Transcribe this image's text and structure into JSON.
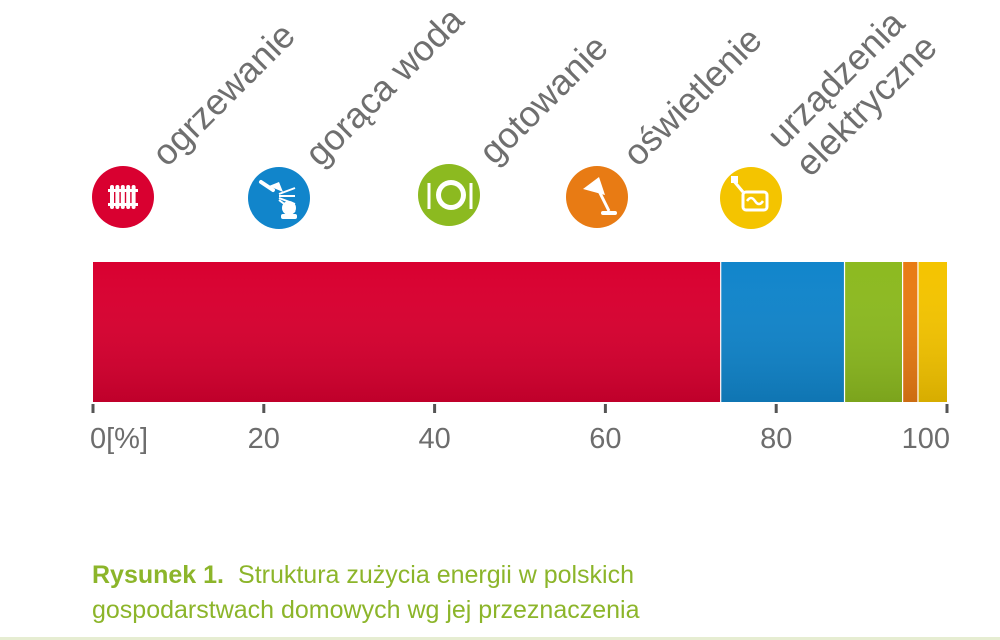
{
  "chart_data": {
    "type": "bar",
    "orientation": "horizontal-stacked",
    "categories": [
      "ogrzewanie",
      "gorąca woda",
      "gotowanie",
      "oświetlenie",
      "urządzenia elektryczne"
    ],
    "category_lines": [
      [
        "ogrzewanie"
      ],
      [
        "gorąca woda"
      ],
      [
        "gotowanie"
      ],
      [
        "oświetlenie"
      ],
      [
        "urządzenia",
        "elektryczne"
      ]
    ],
    "values": [
      73.5,
      14.5,
      6.8,
      1.8,
      3.4
    ],
    "colors": [
      "#d90030",
      "#1185cb",
      "#8cba20",
      "#e87b14",
      "#f4c400"
    ],
    "icons": [
      "radiator-icon",
      "shower-icon",
      "plate-cutlery-icon",
      "lamp-icon",
      "plug-appliance-icon"
    ],
    "x_ticks": [
      "0[%]",
      "20",
      "40",
      "60",
      "80",
      "100"
    ],
    "xlim": [
      0,
      100
    ],
    "legend": "top, rotated labels with icons",
    "grid": false
  },
  "caption": {
    "label": "Rysunek 1.",
    "line1": "Struktura zużycia energii w polskich",
    "line2": "gospodarstwach domowych wg jej przeznaczenia"
  }
}
